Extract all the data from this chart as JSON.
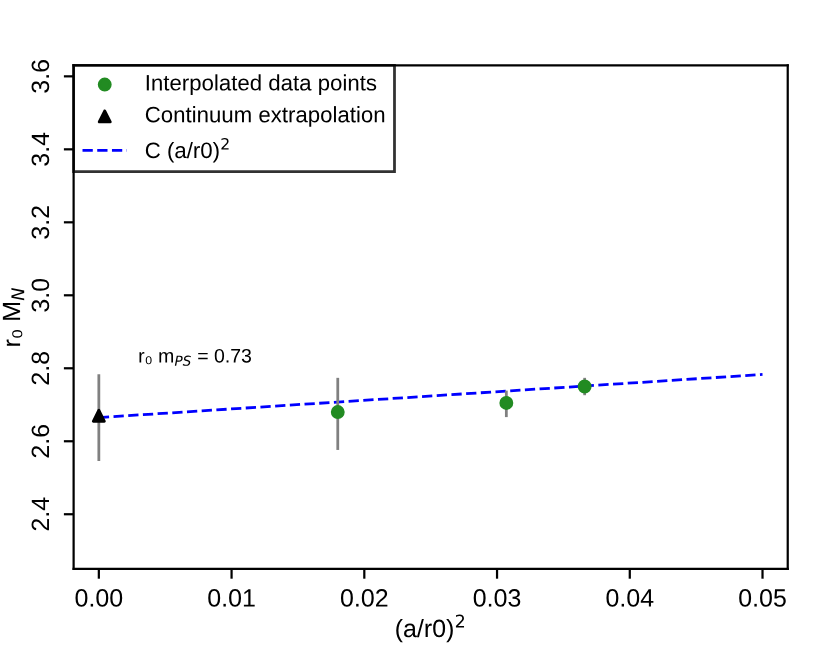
{
  "chart_data": {
    "type": "scatter",
    "xlabel": "(a/r0)$^{2}$",
    "ylabel": "r₀ M$_{N}$",
    "xlim": [
      -0.0019,
      0.0519
    ],
    "ylim": [
      2.25,
      3.63
    ],
    "xticks": [
      {
        "value": 0,
        "label": "0.00"
      },
      0.01,
      0.02,
      0.03,
      0.04,
      0.05
    ],
    "yticks": [
      2.4,
      2.6,
      2.8,
      {
        "value": 3.0,
        "label": "3.0"
      },
      3.2,
      3.4,
      3.6
    ],
    "grid": false,
    "legend": "top left",
    "annotations": [
      "r₀ m$_{PS}$ = 0.73"
    ],
    "series": [
      {
        "name": "Interpolated data points",
        "marker": "circle",
        "color": "#228b22",
        "x": [
          0.018,
          0.0307,
          0.0366
        ],
        "values": [
          2.68,
          2.705,
          2.75
        ],
        "errors": [
          [
            2.58,
            2.77
          ],
          [
            2.67,
            2.735
          ],
          [
            2.73,
            2.77
          ]
        ]
      },
      {
        "name": "Continuum extrapolation",
        "marker": "triangle",
        "color": "#000000",
        "x": [
          0.0
        ],
        "values": [
          2.67
        ],
        "errors": [
          [
            2.55,
            2.78
          ]
        ]
      },
      {
        "name": "C (a/r0)$^{2}$",
        "type": "line",
        "line_style": "dashed",
        "color": "#0000ff",
        "x": [
          0.0,
          0.05
        ],
        "values": [
          2.665,
          2.783
        ]
      }
    ]
  }
}
